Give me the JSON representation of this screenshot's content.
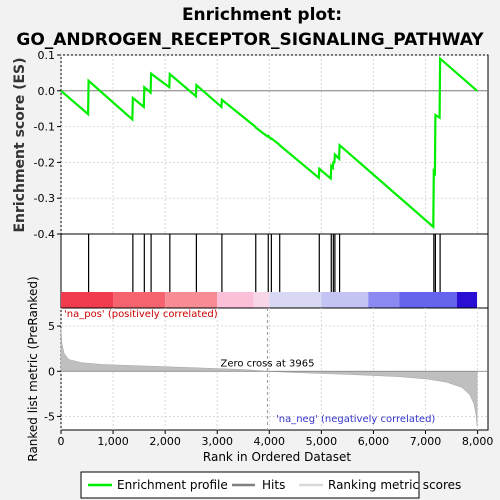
{
  "chart_data": {
    "type": "line",
    "title_line1": "Enrichment plot:",
    "title_line2": "GO_ANDROGEN_RECEPTOR_SIGNALING_PATHWAY",
    "es_ylabel": "Enrichment score (ES)",
    "metric_ylabel": "Ranked list metric (PreRanked)",
    "xlabel": "Rank in Ordered Dataset",
    "xlim": [
      0,
      8200
    ],
    "es_ylim": [
      -0.4,
      0.1
    ],
    "metric_ylim": [
      -6.5,
      7
    ],
    "x_ticks": [
      0,
      1000,
      2000,
      3000,
      4000,
      5000,
      6000,
      7000,
      8000
    ],
    "x_tick_labels": [
      "0",
      "1,000",
      "2,000",
      "3,000",
      "4,000",
      "5,000",
      "6,000",
      "7,000",
      "8,000"
    ],
    "es_ticks": [
      0.1,
      0.0,
      -0.1,
      -0.2,
      -0.3,
      -0.4
    ],
    "es_tick_labels": [
      "0.1",
      "0.0",
      "-0.1",
      "-0.2",
      "-0.3",
      "-0.4"
    ],
    "metric_ticks": [
      5,
      0,
      -5
    ],
    "metric_tick_labels": [
      "5",
      "0",
      "-5"
    ],
    "n_genes": 7990,
    "zero_cross": 3965,
    "zero_cross_label": "Zero cross at 3965",
    "pos_label": "'na_pos' (positively correlated)",
    "neg_label": "'na_neg' (negatively correlated)",
    "hits": [
      530,
      1380,
      1600,
      1730,
      2090,
      2600,
      3090,
      3740,
      3980,
      4040,
      4200,
      4960,
      5190,
      5230,
      5260,
      5350,
      7160,
      7190,
      7280
    ],
    "es_curve": [
      [
        0,
        0.0
      ],
      [
        520,
        -0.065
      ],
      [
        530,
        0.028
      ],
      [
        1370,
        -0.08
      ],
      [
        1380,
        -0.02
      ],
      [
        1590,
        -0.045
      ],
      [
        1600,
        0.01
      ],
      [
        1720,
        -0.005
      ],
      [
        1730,
        0.048
      ],
      [
        2080,
        0.01
      ],
      [
        2090,
        0.047
      ],
      [
        2590,
        -0.015
      ],
      [
        2600,
        0.016
      ],
      [
        3080,
        -0.045
      ],
      [
        3090,
        -0.025
      ],
      [
        3730,
        -0.1
      ],
      [
        3740,
        -0.103
      ],
      [
        3970,
        -0.128
      ],
      [
        3980,
        -0.126
      ],
      [
        4030,
        -0.134
      ],
      [
        4040,
        -0.133
      ],
      [
        4190,
        -0.15
      ],
      [
        4200,
        -0.152
      ],
      [
        4950,
        -0.243
      ],
      [
        4960,
        -0.218
      ],
      [
        5180,
        -0.245
      ],
      [
        5190,
        -0.21
      ],
      [
        5220,
        -0.215
      ],
      [
        5230,
        -0.2
      ],
      [
        5250,
        -0.2
      ],
      [
        5260,
        -0.178
      ],
      [
        5340,
        -0.19
      ],
      [
        5350,
        -0.152
      ],
      [
        7150,
        -0.38
      ],
      [
        7160,
        -0.225
      ],
      [
        7180,
        -0.23
      ],
      [
        7190,
        -0.068
      ],
      [
        7270,
        -0.075
      ],
      [
        7280,
        0.09
      ],
      [
        7990,
        0.0
      ]
    ],
    "metric_curve": [
      [
        0,
        4.8
      ],
      [
        20,
        3.0
      ],
      [
        60,
        2.0
      ],
      [
        150,
        1.3
      ],
      [
        400,
        0.95
      ],
      [
        800,
        0.75
      ],
      [
        1500,
        0.6
      ],
      [
        2500,
        0.4
      ],
      [
        3500,
        0.2
      ],
      [
        3965,
        0.0
      ],
      [
        4500,
        -0.15
      ],
      [
        5500,
        -0.35
      ],
      [
        6500,
        -0.6
      ],
      [
        7000,
        -0.85
      ],
      [
        7400,
        -1.2
      ],
      [
        7700,
        -1.8
      ],
      [
        7850,
        -2.6
      ],
      [
        7930,
        -3.6
      ],
      [
        7970,
        -4.8
      ],
      [
        7990,
        -6.1
      ]
    ],
    "band_segments": [
      {
        "from": 0,
        "to": 1000,
        "color": "#f03c4e"
      },
      {
        "from": 1000,
        "to": 2000,
        "color": "#f5646e"
      },
      {
        "from": 2000,
        "to": 3000,
        "color": "#f88c94"
      },
      {
        "from": 3000,
        "to": 3700,
        "color": "#fcbfd8"
      },
      {
        "from": 3700,
        "to": 4000,
        "color": "#f7d6e8"
      },
      {
        "from": 4000,
        "to": 5000,
        "color": "#d8d8f4"
      },
      {
        "from": 5000,
        "to": 5900,
        "color": "#c4c4f4"
      },
      {
        "from": 5900,
        "to": 6500,
        "color": "#8a8af2"
      },
      {
        "from": 6500,
        "to": 7600,
        "color": "#6464ec"
      },
      {
        "from": 7600,
        "to": 7990,
        "color": "#2a0ed4"
      }
    ],
    "colors": {
      "es_line": "#00ee00",
      "hits": "#000000",
      "zero_line": "#808080",
      "metric_fill": "#bfbfbf",
      "grid": "#d9d9d9"
    },
    "grid": true,
    "legend_position": "bottom",
    "legend": [
      "Enrichment profile",
      "Hits",
      "Ranking metric scores"
    ]
  }
}
